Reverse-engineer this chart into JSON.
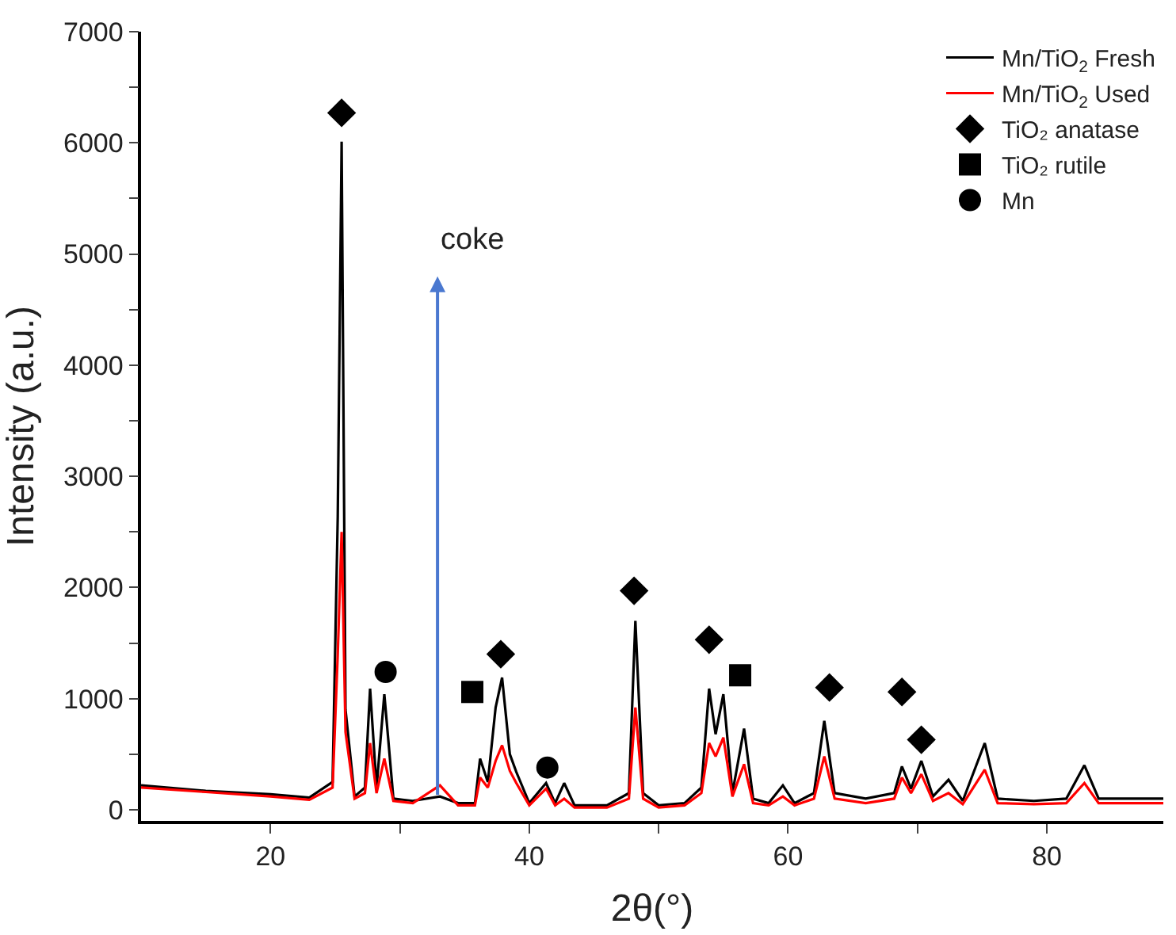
{
  "chart_data": {
    "type": "line",
    "xlabel": "2θ(°)",
    "ylabel": "Intensity (a.u.)",
    "x": [
      10,
      15,
      20,
      23,
      24.8,
      25.2,
      25.5,
      25.8,
      26.5,
      27.3,
      27.7,
      28.2,
      28.8,
      29.5,
      31,
      33.1,
      34.5,
      35.8,
      36.2,
      36.8,
      37.4,
      37.9,
      38.5,
      39,
      40,
      41.3,
      42,
      42.7,
      43.5,
      46,
      47.7,
      48.2,
      48.8,
      50,
      52,
      53.3,
      53.9,
      54.4,
      55,
      55.7,
      56.6,
      57.3,
      58.5,
      59.6,
      60.5,
      62,
      62.8,
      63.6,
      66,
      68.2,
      68.8,
      69.5,
      70.3,
      71.2,
      72.4,
      73.5,
      75.2,
      76.2,
      79,
      81.5,
      82.9,
      84,
      89
    ],
    "series": [
      {
        "name": "Mn/TiO$_{2}$ Fresh",
        "color": "#000000",
        "values": [
          220,
          170,
          140,
          110,
          250,
          2640,
          6010,
          900,
          120,
          200,
          1090,
          200,
          1040,
          100,
          80,
          120,
          60,
          60,
          460,
          250,
          920,
          1190,
          500,
          340,
          60,
          240,
          60,
          240,
          40,
          40,
          150,
          1700,
          150,
          40,
          60,
          200,
          1090,
          680,
          1040,
          150,
          730,
          100,
          60,
          220,
          60,
          150,
          800,
          150,
          100,
          150,
          390,
          190,
          440,
          120,
          270,
          80,
          600,
          100,
          80,
          100,
          400,
          100,
          100
        ]
      },
      {
        "name": "Mn/TiO$_{2}$ Used",
        "color": "#ff0000",
        "values": [
          200,
          160,
          120,
          90,
          200,
          1400,
          2500,
          700,
          100,
          150,
          600,
          150,
          460,
          80,
          60,
          220,
          40,
          40,
          290,
          200,
          440,
          580,
          350,
          240,
          40,
          190,
          40,
          100,
          20,
          20,
          100,
          920,
          100,
          20,
          40,
          150,
          600,
          480,
          650,
          120,
          410,
          60,
          40,
          120,
          40,
          100,
          480,
          100,
          60,
          100,
          290,
          150,
          320,
          80,
          150,
          50,
          360,
          60,
          50,
          60,
          240,
          60,
          60
        ]
      },
      {
        "name": "TiO₂ anatase",
        "type": "scatter",
        "marker": "diamond",
        "color": "#000000",
        "x": [
          25.5,
          37.8,
          48.1,
          53.9,
          63.2,
          68.8,
          70.3
        ],
        "values": [
          6270,
          1400,
          1970,
          1530,
          1100,
          1060,
          630
        ]
      },
      {
        "name": "TiO₂ rutile",
        "type": "scatter",
        "marker": "square",
        "color": "#000000",
        "x": [
          35.6,
          56.3
        ],
        "values": [
          1060,
          1210
        ]
      },
      {
        "name": "Mn",
        "type": "scatter",
        "marker": "circle",
        "color": "#000000",
        "x": [
          28.9,
          41.4
        ],
        "values": [
          1240,
          380
        ]
      }
    ],
    "annotations": [
      "coke"
    ],
    "xlim": [
      10,
      89
    ],
    "ylim": [
      -100,
      7000
    ],
    "xticks": [
      20,
      {
        "value": 30,
        "label": null
      },
      40,
      {
        "value": 50,
        "label": null
      },
      60,
      {
        "value": 70,
        "label": null
      },
      80
    ],
    "yticks": [
      0,
      {
        "value": 500,
        "label": null
      },
      1000,
      {
        "value": 1500,
        "label": null
      },
      2000,
      {
        "value": 2500,
        "label": null
      },
      3000,
      {
        "value": 3500,
        "label": null
      },
      4000,
      {
        "value": 4500,
        "label": null
      },
      5000,
      {
        "value": 5500,
        "label": null
      },
      6000,
      {
        "value": 6500,
        "label": null
      },
      7000
    ],
    "legend": "top right",
    "marker": "none",
    "line_style": "solid"
  }
}
